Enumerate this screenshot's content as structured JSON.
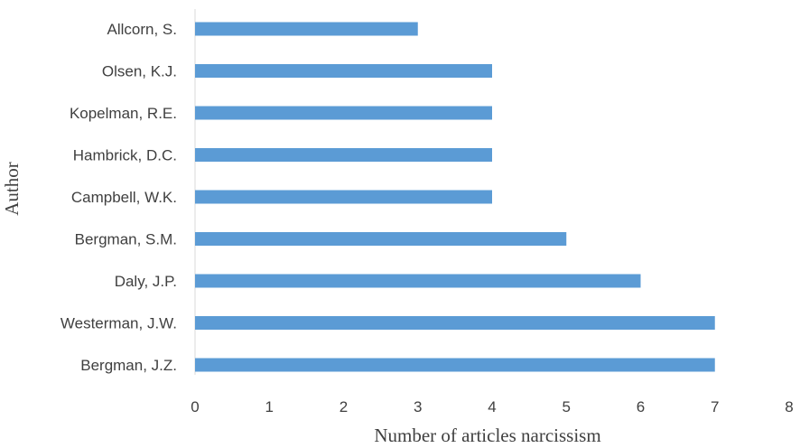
{
  "chart_data": {
    "type": "bar",
    "orientation": "horizontal",
    "categories": [
      "Allcorn, S.",
      "Olsen, K.J.",
      "Kopelman, R.E.",
      "Hambrick, D.C.",
      "Campbell, W.K.",
      "Bergman, S.M.",
      "Daly, J.P.",
      "Westerman, J.W.",
      "Bergman, J.Z."
    ],
    "values": [
      3,
      4,
      4,
      4,
      4,
      5,
      6,
      7,
      7
    ],
    "xlabel": "Number of articles narcissism",
    "ylabel": "Author",
    "xlim": [
      0,
      8
    ],
    "xticks": [
      "0",
      "1",
      "2",
      "3",
      "4",
      "5",
      "6",
      "7",
      "8"
    ],
    "grid": false,
    "bar_color": "#5b9bd5"
  }
}
